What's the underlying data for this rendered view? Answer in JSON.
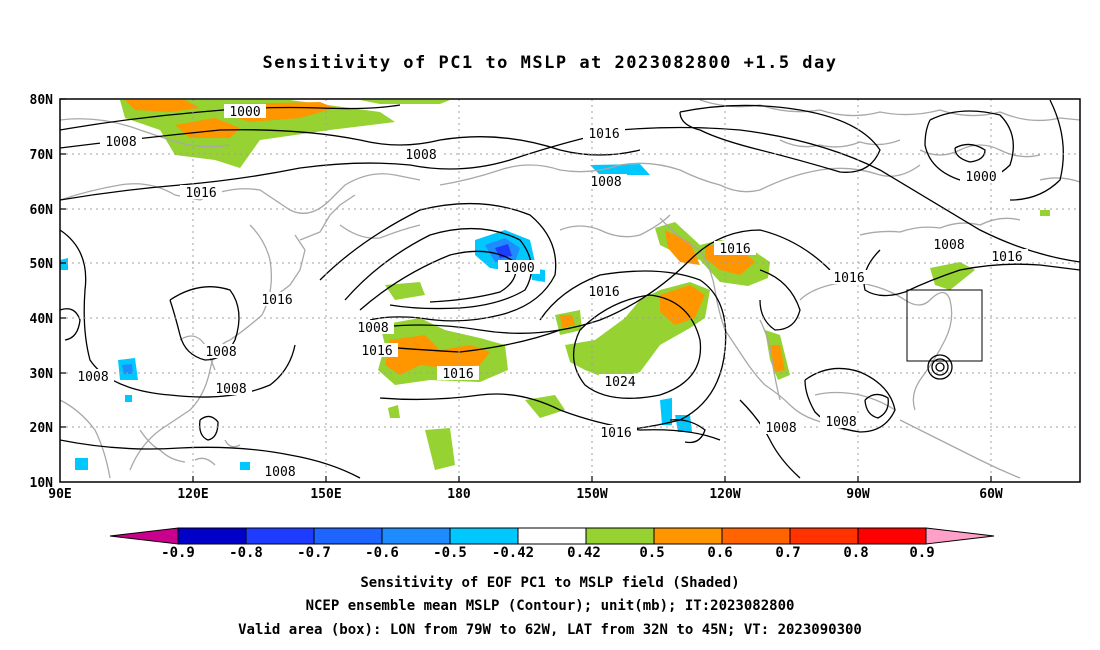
{
  "title": "Sensitivity of PC1 to MSLP at 2023082800 +1.5 day",
  "lat_labels": [
    "80N",
    "70N",
    "60N",
    "50N",
    "40N",
    "30N",
    "20N",
    "10N"
  ],
  "lon_labels": [
    "90E",
    "120E",
    "150E",
    "180",
    "150W",
    "120W",
    "90W",
    "60W"
  ],
  "contour_labels": [
    {
      "text": "1000",
      "id": "c1"
    },
    {
      "text": "1008",
      "id": "c2"
    },
    {
      "text": "1008",
      "id": "c3"
    },
    {
      "text": "1016",
      "id": "c4"
    },
    {
      "text": "1008",
      "id": "c5"
    },
    {
      "text": "1016",
      "id": "c6"
    },
    {
      "text": "1000",
      "id": "c7"
    },
    {
      "text": "1016",
      "id": "c8"
    },
    {
      "text": "1016",
      "id": "c9"
    },
    {
      "text": "1008",
      "id": "c10"
    },
    {
      "text": "1016",
      "id": "c11"
    },
    {
      "text": "1016",
      "id": "c12"
    },
    {
      "text": "1008",
      "id": "c13"
    },
    {
      "text": "1016",
      "id": "c14"
    },
    {
      "text": "1008",
      "id": "c15"
    },
    {
      "text": "1008",
      "id": "c16"
    },
    {
      "text": "1016",
      "id": "c17"
    },
    {
      "text": "1024",
      "id": "c18"
    },
    {
      "text": "1008",
      "id": "c19"
    },
    {
      "text": "1016",
      "id": "c20"
    },
    {
      "text": "1008",
      "id": "c21"
    },
    {
      "text": "1008",
      "id": "c22"
    },
    {
      "text": "1008",
      "id": "c23"
    },
    {
      "text": "1016",
      "id": "c24"
    },
    {
      "text": "1016",
      "id": "c25"
    },
    {
      "text": "1000",
      "id": "c26"
    },
    {
      "text": "1008",
      "id": "c27"
    }
  ],
  "colorbar": {
    "labels": [
      "-0.9",
      "-0.8",
      "-0.7",
      "-0.6",
      "-0.5",
      "-0.42",
      "0.42",
      "0.5",
      "0.6",
      "0.7",
      "0.8",
      "0.9"
    ],
    "colors": [
      "#c8008c",
      "#0000c8",
      "#1e3cff",
      "#1e64ff",
      "#1e8cff",
      "#00c8ff",
      "#ffffff",
      "#96d232",
      "#ff9600",
      "#ff6400",
      "#ff3200",
      "#ff0000",
      "#ffa0c8"
    ]
  },
  "captions": [
    "Sensitivity of EOF PC1 to MSLP field (Shaded)",
    "NCEP ensemble mean MSLP (Contour); unit(mb); IT:2023082800",
    "Valid area (box): LON from 79W to 62W, LAT from 32N to 45N; VT: 2023090300"
  ],
  "valid_area": {
    "lon_west": -79,
    "lon_east": -62,
    "lat_south": 32,
    "lat_north": 45
  }
}
